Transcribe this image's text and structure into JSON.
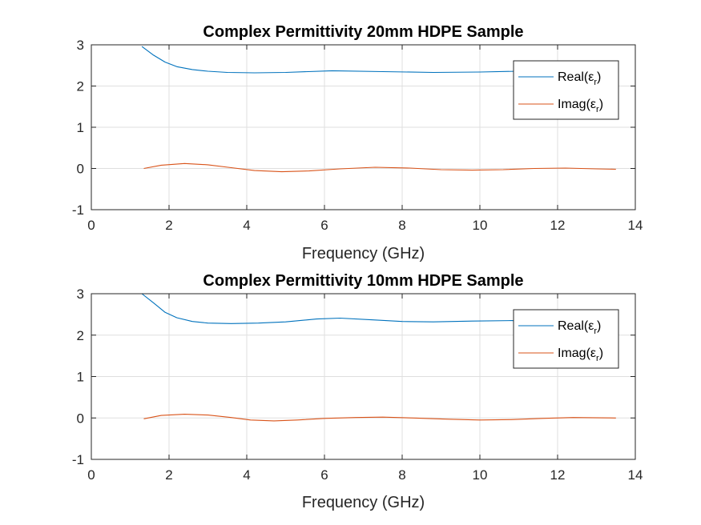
{
  "colors": {
    "real": "#0072BD",
    "imag": "#D95319",
    "grid": "#dfdfdf",
    "axis": "#262626"
  },
  "chart_data": [
    {
      "type": "line",
      "title": "Complex Permittivity 20mm HDPE Sample",
      "xlabel": "Frequency (GHz)",
      "ylabel": "",
      "xlim": [
        0,
        14
      ],
      "ylim": [
        -1,
        3
      ],
      "xticks": [
        "0",
        "2",
        "4",
        "6",
        "8",
        "10",
        "12",
        "14"
      ],
      "yticks": [
        "-1",
        "0",
        "1",
        "2",
        "3"
      ],
      "grid": true,
      "legend_position": "top-right",
      "series": [
        {
          "name": "Real(εr)",
          "legend": {
            "base": "Real(",
            "greek": "ε",
            "sub": "r",
            "close": ")"
          },
          "color": "#0072BD",
          "x": [
            1.3,
            1.6,
            1.9,
            2.2,
            2.6,
            3.0,
            3.5,
            4.2,
            5.0,
            6.2,
            7.5,
            8.8,
            10.0,
            11.0,
            12.0,
            12.8,
            13.5
          ],
          "y": [
            2.96,
            2.75,
            2.58,
            2.47,
            2.4,
            2.36,
            2.33,
            2.32,
            2.33,
            2.37,
            2.35,
            2.33,
            2.34,
            2.36,
            2.35,
            2.36,
            2.36
          ]
        },
        {
          "name": "Imag(εr)",
          "legend": {
            "base": "Imag(",
            "greek": "ε",
            "sub": "r",
            "close": ")"
          },
          "color": "#D95319",
          "x": [
            1.35,
            1.8,
            2.4,
            3.0,
            3.6,
            4.2,
            4.9,
            5.6,
            6.4,
            7.3,
            8.2,
            9.0,
            9.8,
            10.6,
            11.4,
            12.2,
            13.0,
            13.5
          ],
          "y": [
            0.0,
            0.08,
            0.12,
            0.09,
            0.02,
            -0.05,
            -0.08,
            -0.06,
            -0.01,
            0.03,
            0.01,
            -0.03,
            -0.04,
            -0.03,
            0.0,
            0.01,
            -0.01,
            -0.02
          ]
        }
      ]
    },
    {
      "type": "line",
      "title": "Complex Permittivity 10mm HDPE Sample",
      "xlabel": "Frequency (GHz)",
      "ylabel": "",
      "xlim": [
        0,
        14
      ],
      "ylim": [
        -1,
        3
      ],
      "xticks": [
        "0",
        "2",
        "4",
        "6",
        "8",
        "10",
        "12",
        "14"
      ],
      "yticks": [
        "-1",
        "0",
        "1",
        "2",
        "3"
      ],
      "grid": true,
      "legend_position": "top-right",
      "series": [
        {
          "name": "Real(εr)",
          "legend": {
            "base": "Real(",
            "greek": "ε",
            "sub": "r",
            "close": ")"
          },
          "color": "#0072BD",
          "x": [
            1.3,
            1.6,
            1.9,
            2.2,
            2.6,
            3.0,
            3.6,
            4.3,
            5.0,
            5.8,
            6.4,
            7.2,
            8.0,
            8.8,
            9.8,
            10.8,
            11.8,
            12.6,
            13.5
          ],
          "y": [
            3.0,
            2.78,
            2.55,
            2.42,
            2.33,
            2.29,
            2.28,
            2.29,
            2.32,
            2.39,
            2.41,
            2.37,
            2.33,
            2.32,
            2.34,
            2.35,
            2.33,
            2.34,
            2.35
          ]
        },
        {
          "name": "Imag(εr)",
          "legend": {
            "base": "Imag(",
            "greek": "ε",
            "sub": "r",
            "close": ")"
          },
          "color": "#D95319",
          "x": [
            1.35,
            1.8,
            2.4,
            3.0,
            3.6,
            4.1,
            4.7,
            5.3,
            6.0,
            6.8,
            7.5,
            8.3,
            9.2,
            10.0,
            10.8,
            11.6,
            12.4,
            13.5
          ],
          "y": [
            -0.02,
            0.06,
            0.09,
            0.07,
            0.01,
            -0.05,
            -0.07,
            -0.05,
            -0.01,
            0.01,
            0.02,
            0.0,
            -0.03,
            -0.05,
            -0.04,
            -0.01,
            0.01,
            0.0
          ]
        }
      ]
    }
  ]
}
